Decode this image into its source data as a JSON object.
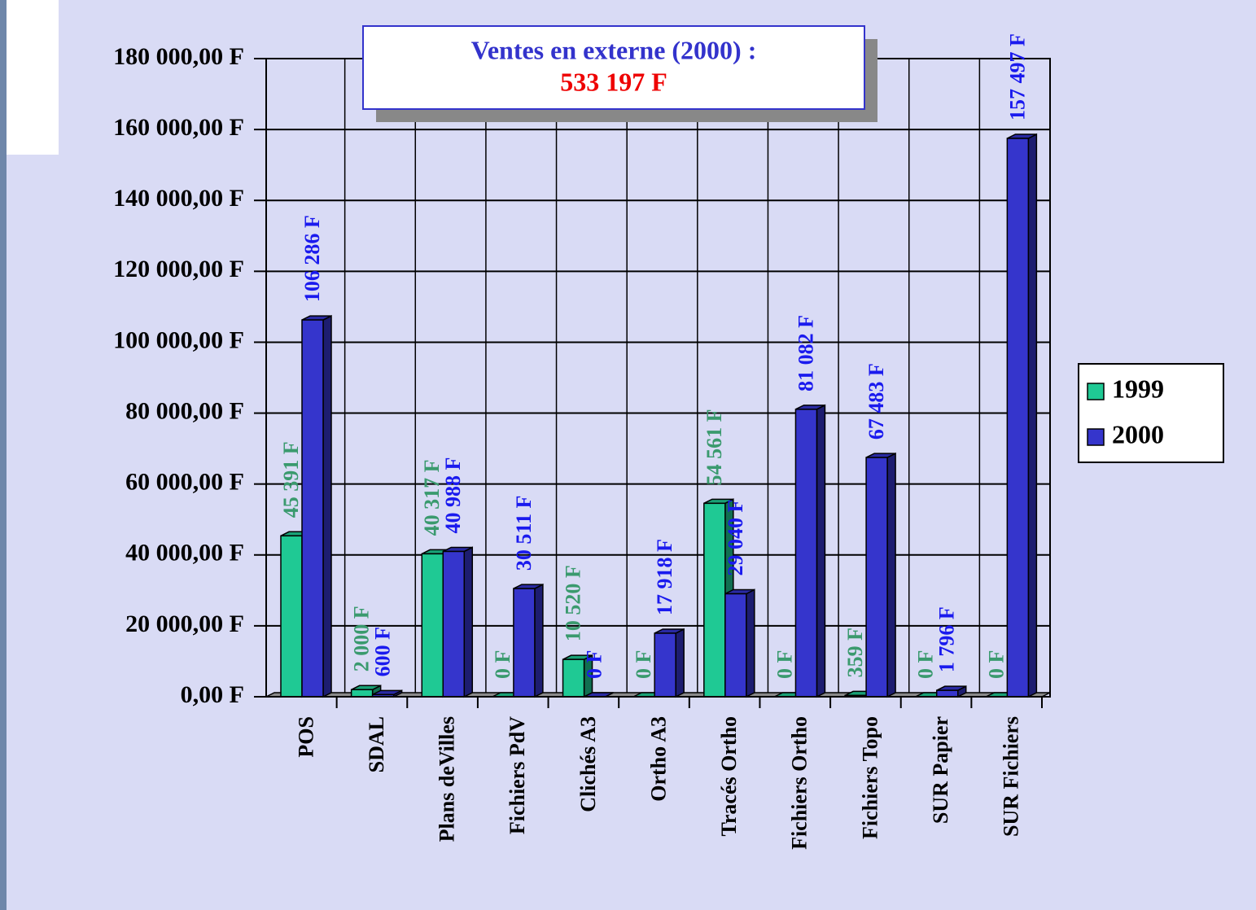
{
  "chart_data": {
    "type": "bar3d",
    "title": "Ventes en externe (2000) :",
    "subtitle": "533 197 F",
    "categories": [
      "POS",
      "SDAL",
      "Plans deVilles",
      "Fichiers PdV",
      "Clichés A3",
      "Ortho A3",
      "Tracés Ortho",
      "Fichiers Ortho",
      "Fichiers Topo",
      "SUR Papier",
      "SUR Fichiers"
    ],
    "series": [
      {
        "name": "1999",
        "color": "#1fc994",
        "label_color": "#3a9a6e",
        "values": [
          45391,
          2000,
          40317,
          0,
          10520,
          0,
          54561,
          0,
          359,
          0,
          0
        ],
        "value_labels": [
          "45 391 F",
          "2 000 F",
          "40 317 F",
          "0 F",
          "10 520 F",
          "0 F",
          "54 561 F",
          "0 F",
          "359 F",
          "0 F",
          "0 F"
        ]
      },
      {
        "name": "2000",
        "color": "#3535cc",
        "label_color": "#1a1aee",
        "values": [
          106286,
          600,
          40988,
          30511,
          0,
          17918,
          29040,
          81082,
          67483,
          1796,
          157497
        ],
        "value_labels": [
          "106 286 F",
          "600 F",
          "40 988 F",
          "30 511 F",
          "0 F",
          "17 918 F",
          "29 040 F",
          "81 082 F",
          "67 483 F",
          "1 796 F",
          "157 497 F"
        ]
      }
    ],
    "ylim": [
      0,
      180000
    ],
    "yticks": [
      {
        "value": 0,
        "label": "0,00 F"
      },
      {
        "value": 20000,
        "label": "20 000,00 F"
      },
      {
        "value": 40000,
        "label": "40 000,00 F"
      },
      {
        "value": 60000,
        "label": "60 000,00 F"
      },
      {
        "value": 80000,
        "label": "80 000,00 F"
      },
      {
        "value": 100000,
        "label": "100 000,00 F"
      },
      {
        "value": 120000,
        "label": "120 000,00 F"
      },
      {
        "value": 140000,
        "label": "140 000,00 F"
      },
      {
        "value": 160000,
        "label": "160 000,00 F"
      },
      {
        "value": 180000,
        "label": "180 000,00 F"
      }
    ],
    "grid": true,
    "legend": "right"
  }
}
